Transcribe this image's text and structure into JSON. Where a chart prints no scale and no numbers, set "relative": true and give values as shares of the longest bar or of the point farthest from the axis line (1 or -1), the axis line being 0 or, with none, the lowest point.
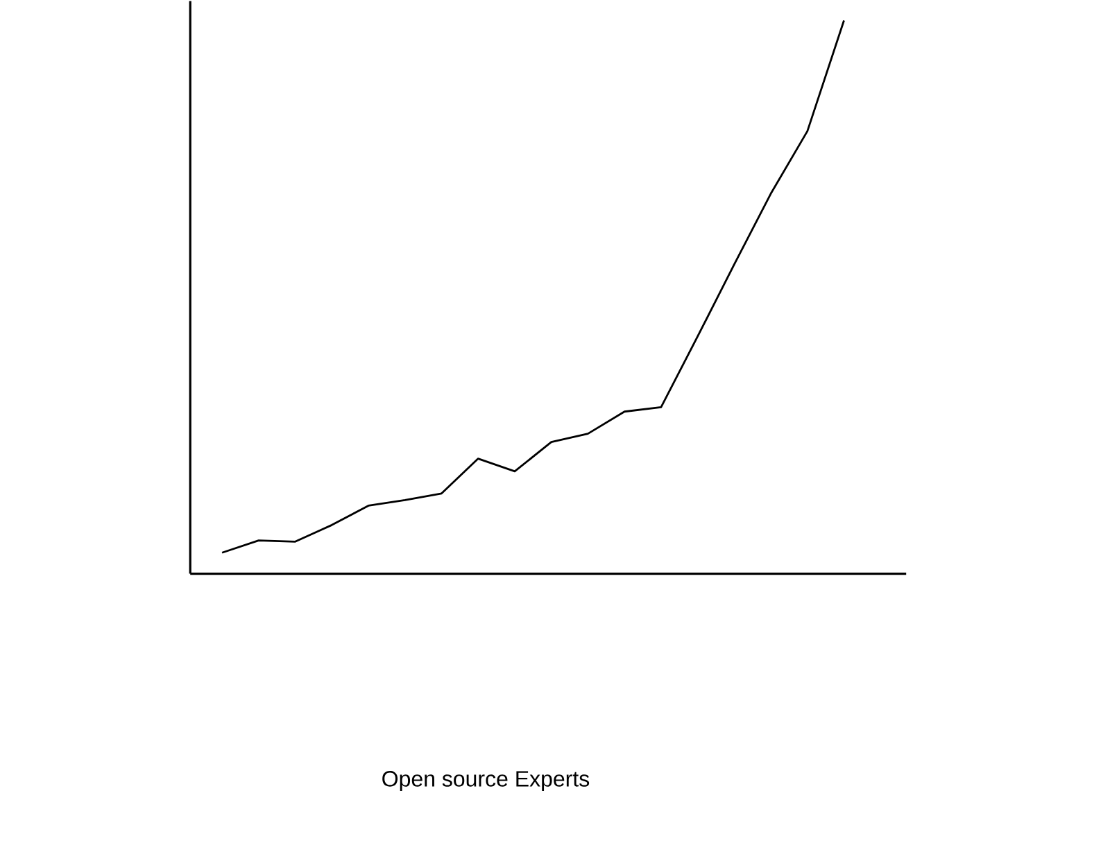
{
  "chart_data": {
    "type": "line",
    "relative": true,
    "annotations": [
      "Open source Experts"
    ],
    "categories": [
      null,
      null,
      null,
      null,
      null,
      null,
      null,
      null,
      null,
      null,
      null,
      null,
      null,
      null,
      null,
      null,
      null,
      null
    ],
    "series": [
      {
        "color": "#000000",
        "values": [
          0.038,
          0.06,
          0.058,
          0.088,
          0.123,
          0.133,
          0.145,
          0.208,
          0.185,
          0.238,
          0.253,
          0.293,
          0.301,
          0.429,
          0.559,
          0.687,
          0.8,
          1
        ]
      }
    ],
    "marker": "none",
    "line_style": "solid"
  }
}
